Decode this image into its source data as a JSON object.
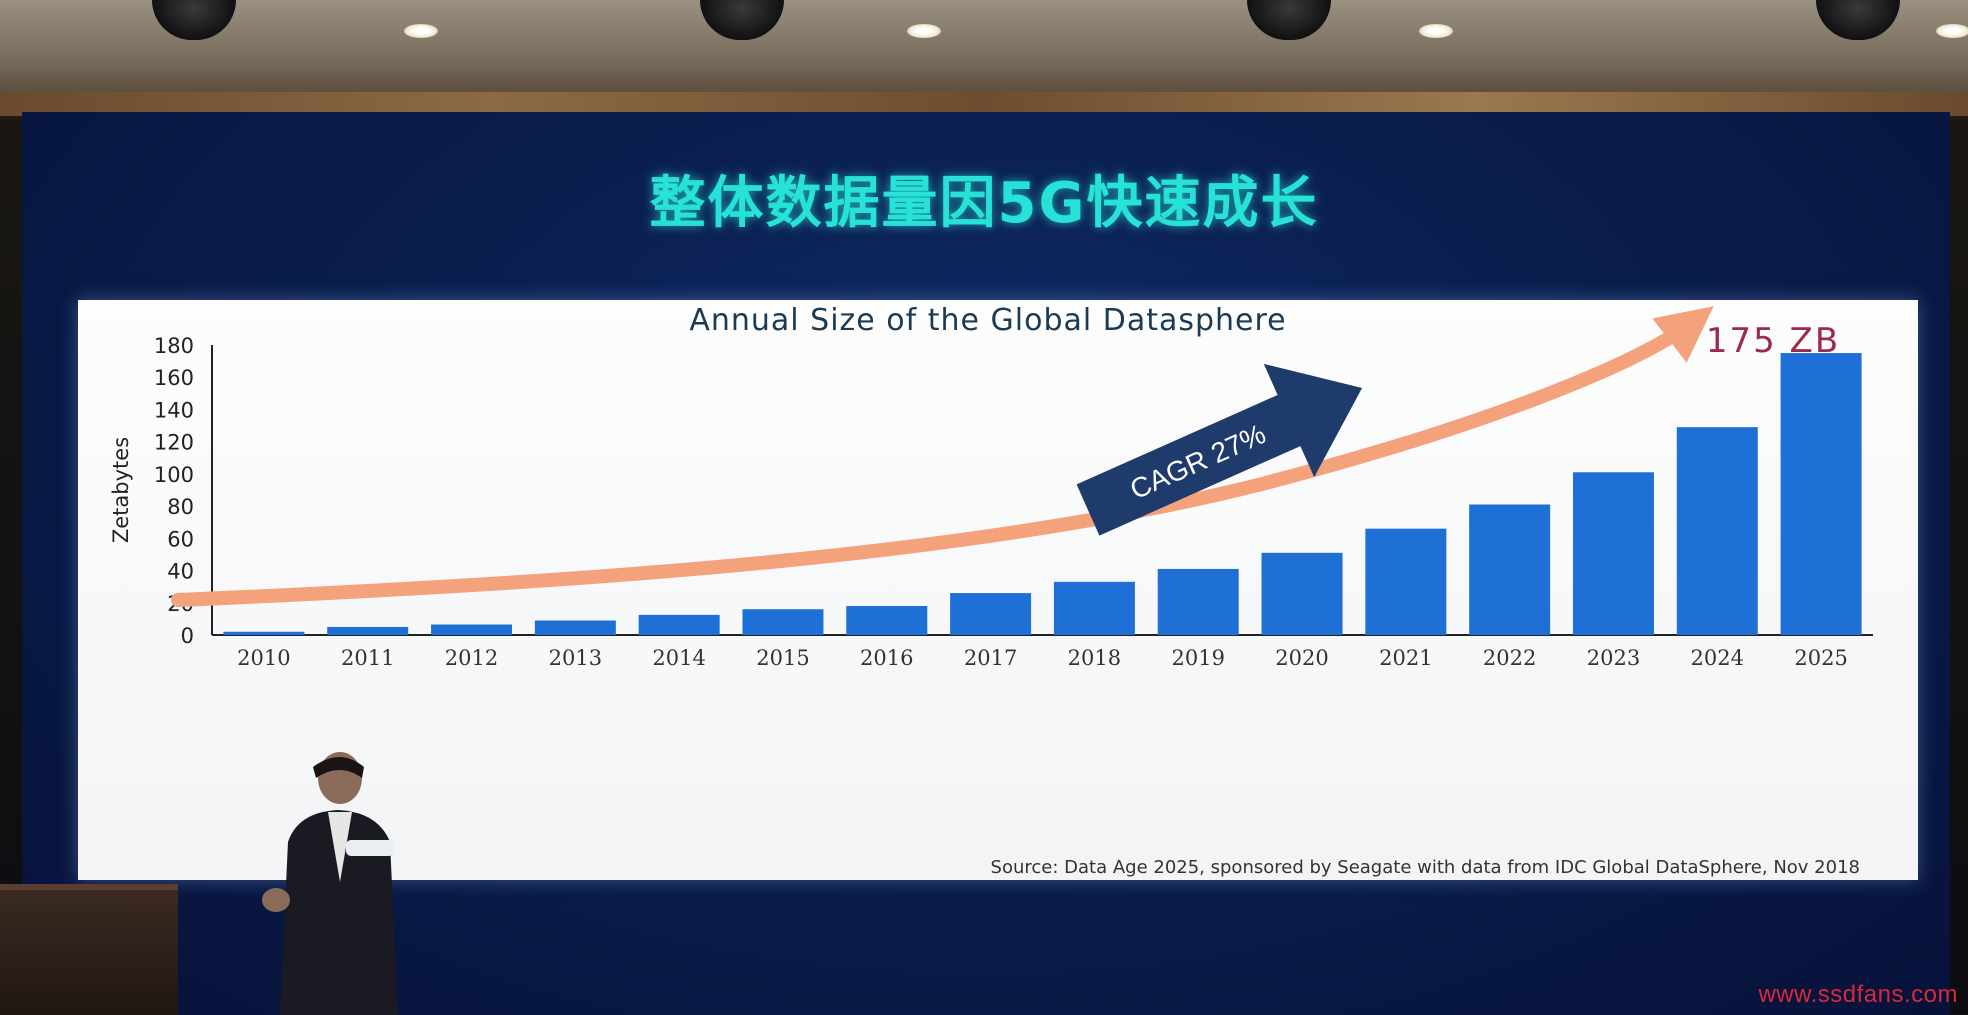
{
  "slide": {
    "title": "整体数据量因5G快速成长"
  },
  "chart_data": {
    "type": "bar",
    "title": "Annual Size of the Global Datasphere",
    "ylabel": "Zetabytes",
    "xlabel": "",
    "ylim": [
      0,
      180
    ],
    "yticks": [
      0,
      20,
      40,
      60,
      80,
      100,
      120,
      140,
      160,
      180
    ],
    "grid": false,
    "categories": [
      "2010",
      "2011",
      "2012",
      "2013",
      "2014",
      "2015",
      "2016",
      "2017",
      "2018",
      "2019",
      "2020",
      "2021",
      "2022",
      "2023",
      "2024",
      "2025"
    ],
    "values": [
      2,
      5,
      6.5,
      9,
      12.5,
      16,
      18,
      26,
      33,
      41,
      51,
      66,
      81,
      101,
      129,
      175
    ],
    "bar_color": "#1e6fd6",
    "annotations": {
      "final_label": "175 ZB",
      "cagr_label": "CAGR 27%",
      "source": "Source: Data Age 2025, sponsored by Seagate with data from IDC Global DataSphere, Nov 2018"
    },
    "colors": {
      "title": "#1c3a52",
      "final_label": "#9b2b4a",
      "trend_arrow": "#f3a27c",
      "cagr_arrow": "#1f3b6c"
    }
  },
  "watermark": "www.ssdfans.com"
}
